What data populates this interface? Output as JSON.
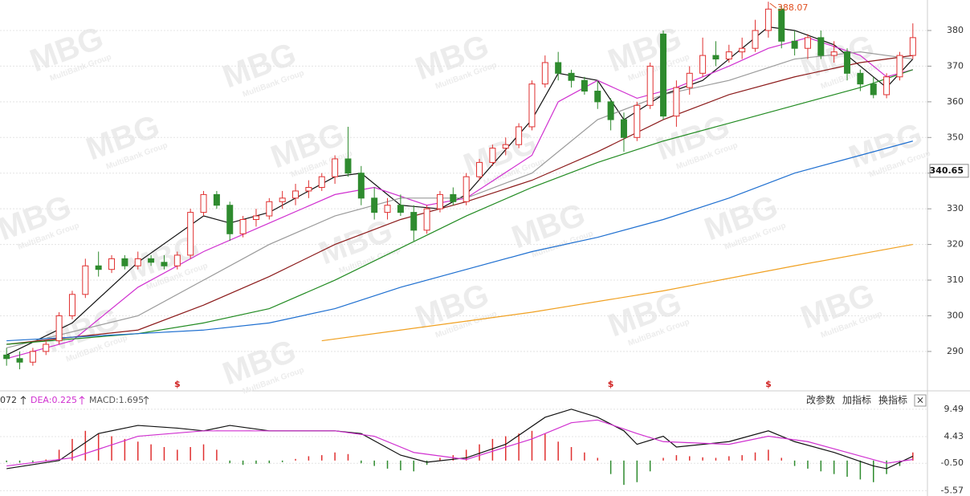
{
  "chart_data": {
    "type": "candlestick",
    "open": [
      289,
      288,
      287,
      290,
      293,
      300,
      306,
      314,
      313,
      316,
      314,
      316,
      315,
      314,
      317,
      329,
      334,
      331,
      323,
      327,
      328,
      332,
      333,
      335,
      336,
      339,
      344,
      340,
      333,
      329,
      331,
      329,
      324,
      330,
      334,
      332,
      339,
      343,
      347,
      348,
      353,
      365,
      371,
      368,
      366,
      363,
      360,
      355,
      350,
      359,
      379,
      356,
      364,
      368,
      373,
      372,
      374,
      375,
      380,
      386,
      377,
      375,
      378,
      373,
      374,
      368,
      365,
      362,
      367,
      373
    ],
    "high": [
      291,
      290,
      291,
      293,
      301,
      307,
      316,
      318,
      317,
      317,
      318,
      317,
      317,
      318,
      330,
      335,
      335,
      332,
      328,
      330,
      333,
      335,
      337,
      338,
      340,
      345,
      353,
      342,
      336,
      333,
      334,
      331,
      331,
      335,
      336,
      340,
      344,
      348,
      350,
      354,
      366,
      373,
      374,
      369,
      367,
      366,
      361,
      357,
      360,
      371,
      380,
      366,
      370,
      378,
      377,
      376,
      378,
      383,
      388.07,
      387,
      380,
      379,
      380,
      377,
      375,
      369,
      367,
      368,
      374,
      382
    ],
    "low": [
      286,
      285,
      286,
      289,
      292,
      299,
      305,
      311,
      312,
      313,
      313,
      314,
      313,
      313,
      316,
      328,
      330,
      321,
      322,
      325,
      327,
      330,
      331,
      333,
      335,
      337,
      339,
      331,
      327,
      327,
      328,
      321,
      323,
      329,
      331,
      331,
      338,
      342,
      345,
      347,
      352,
      364,
      366,
      364,
      362,
      358,
      352,
      346,
      349,
      358,
      355,
      353,
      362,
      367,
      370,
      371,
      372,
      374,
      378,
      375,
      373,
      372,
      372,
      371,
      366,
      363,
      361,
      361,
      366,
      372
    ],
    "close": [
      288,
      287,
      290,
      292,
      300,
      306,
      314,
      313,
      316,
      314,
      316,
      315,
      314,
      317,
      329,
      334,
      331,
      323,
      327,
      328,
      332,
      333,
      335,
      336,
      339,
      344,
      340,
      333,
      329,
      331,
      329,
      324,
      330,
      334,
      332,
      339,
      343,
      347,
      348,
      353,
      365,
      371,
      368,
      366,
      363,
      360,
      355,
      350,
      359,
      370,
      356,
      364,
      368,
      373,
      372,
      374,
      375,
      380,
      386,
      377,
      375,
      378,
      373,
      374,
      368,
      365,
      362,
      367,
      373,
      378
    ],
    "up_color": "#e03030",
    "down_color": "#2e8b2e",
    "ylim": [
      279.4,
      388.55
    ],
    "yticks": [
      290,
      300,
      310,
      320,
      330,
      340,
      350,
      360,
      370,
      380
    ],
    "grid": true,
    "cursor_price": 340.65,
    "marker_x": [
      13,
      46,
      58
    ],
    "marker_label": "$",
    "watermark": "MBG",
    "watermark_sub": "MultiBank Group",
    "ma": [
      {
        "color": "#111111",
        "x": [
          0,
          5,
          10,
          15,
          17,
          20,
          25,
          27,
          30,
          33,
          35,
          40,
          42,
          45,
          47,
          50,
          53,
          55,
          58,
          60,
          63,
          65,
          67,
          69
        ],
        "values": [
          289,
          298,
          315,
          328,
          326,
          329,
          339,
          340,
          331,
          330,
          334,
          355,
          368,
          366,
          355,
          362,
          366,
          372,
          381,
          380,
          376,
          370,
          364,
          372
        ]
      },
      {
        "color": "#d030d0",
        "x": [
          0,
          5,
          10,
          15,
          20,
          25,
          28,
          32,
          35,
          40,
          42,
          45,
          48,
          51,
          55,
          58,
          61,
          65,
          67,
          69
        ],
        "values": [
          288,
          293,
          308,
          318,
          326,
          334,
          336,
          331,
          333,
          345,
          360,
          366,
          361,
          364,
          370,
          375,
          378,
          373,
          367,
          369
        ]
      },
      {
        "color": "#9a9a9a",
        "x": [
          0,
          10,
          15,
          20,
          25,
          30,
          35,
          40,
          45,
          50,
          55,
          60,
          65,
          69
        ],
        "values": [
          291,
          300,
          310,
          320,
          328,
          333,
          333,
          340,
          355,
          362,
          366,
          372,
          374,
          372
        ]
      },
      {
        "color": "#8b1a1a",
        "x": [
          0,
          10,
          15,
          20,
          25,
          30,
          35,
          40,
          45,
          50,
          55,
          60,
          65,
          69
        ],
        "values": [
          292,
          296,
          303,
          311,
          320,
          327,
          332,
          338,
          346,
          355,
          362,
          367,
          371,
          373
        ]
      },
      {
        "color": "#228b22",
        "x": [
          0,
          10,
          15,
          20,
          25,
          30,
          35,
          40,
          45,
          50,
          55,
          60,
          65,
          69
        ],
        "values": [
          292,
          295,
          298,
          302,
          310,
          319,
          328,
          336,
          343,
          349,
          354,
          359,
          364,
          369
        ]
      },
      {
        "color": "#1e6fd0",
        "x": [
          0,
          10,
          15,
          20,
          25,
          30,
          35,
          40,
          45,
          50,
          55,
          60,
          65,
          69
        ],
        "values": [
          293,
          295,
          296,
          298,
          302,
          308,
          313,
          318,
          322,
          327,
          333,
          340,
          345,
          349
        ]
      },
      {
        "color": "#f0a020",
        "x": [
          24,
          30,
          40,
          50,
          60,
          69
        ],
        "values": [
          293,
          296,
          301,
          307,
          314,
          320
        ]
      }
    ],
    "macd": {
      "dif_label": "072",
      "dea_label": "DEA:0.225",
      "macd_label": "MACD:1.695",
      "ylim": [
        -6.56,
        12.45
      ],
      "yticks": [
        9.49,
        4.43,
        {
          "value": -0.5,
          "label": "-0.50"
        },
        -5.57
      ],
      "hist": [
        -0.3,
        -0.4,
        -0.3,
        0.2,
        2,
        4,
        5.5,
        5,
        4.5,
        4,
        3.5,
        3,
        2.5,
        2,
        2.5,
        3,
        2,
        -0.5,
        -0.8,
        -0.6,
        -0.5,
        -0.3,
        0.3,
        0.8,
        1,
        1.5,
        1.2,
        -0.5,
        -1,
        -1.5,
        -1.8,
        -2,
        -0.8,
        0.5,
        1,
        2,
        3,
        4,
        4.5,
        5,
        5.5,
        5,
        3.5,
        2.5,
        1.5,
        0.5,
        -2.5,
        -4.5,
        -4,
        -2,
        0.5,
        1,
        0.8,
        0.6,
        0.5,
        0.8,
        1,
        1.5,
        2,
        0.5,
        -1,
        -1.5,
        -2,
        -2.5,
        -3,
        -3.5,
        -4,
        -2.5,
        -1,
        1.5
      ],
      "dif": {
        "color": "#111111",
        "x": [
          0,
          4,
          7,
          10,
          13,
          15,
          17,
          20,
          25,
          27,
          30,
          32,
          35,
          38,
          41,
          43,
          45,
          47,
          48,
          50,
          51,
          55,
          58,
          60,
          63,
          66,
          67,
          69
        ],
        "values": [
          -1.5,
          0,
          5,
          6.5,
          6,
          5.5,
          6.5,
          5.5,
          5.5,
          5,
          1,
          -0.3,
          0.5,
          3,
          8,
          9.5,
          8,
          5.5,
          3,
          4.5,
          2.5,
          3.5,
          5.5,
          3.5,
          1.5,
          -1,
          -1.5,
          0.8
        ]
      },
      "dea": {
        "color": "#d030d0",
        "x": [
          0,
          5,
          10,
          15,
          20,
          25,
          28,
          31,
          35,
          40,
          43,
          45,
          48,
          50,
          55,
          58,
          61,
          64,
          67,
          69
        ],
        "values": [
          -1,
          0.5,
          4.5,
          5.5,
          5.5,
          5.5,
          4.5,
          1.5,
          0.2,
          4,
          7,
          7.5,
          5,
          3.5,
          3,
          4.5,
          3.5,
          1.5,
          -0.5,
          0.2
        ]
      }
    },
    "buttons": [
      "改参数",
      "加指标",
      "换指标"
    ],
    "close_button": "×"
  }
}
